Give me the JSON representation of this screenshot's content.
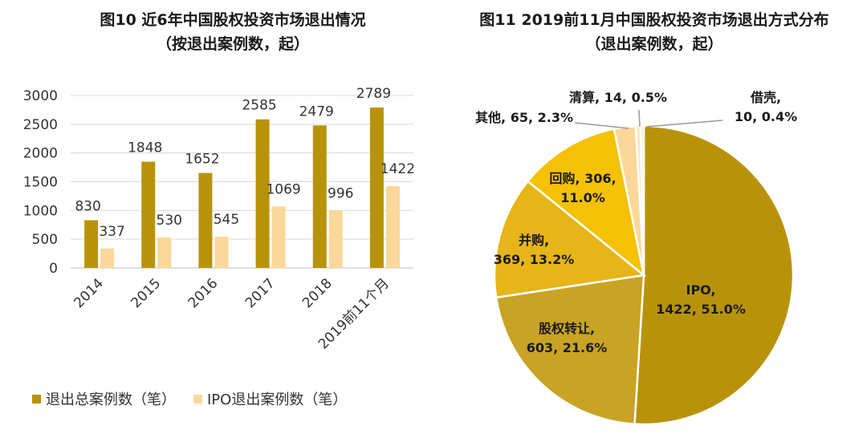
{
  "fig10": {
    "title_line1": "图10  近6年中国股权投资市场退出情况",
    "title_line2": "（按退出案例数，起）"
  },
  "fig11": {
    "title_line1": "图11   2019前11月中国股权投资市场退出方式分布",
    "title_line2": "（退出案例数，起）"
  },
  "colors": {
    "total": "#B8930A",
    "ipo": "#FCD79A"
  },
  "chart_data": [
    {
      "type": "bar",
      "categories": [
        "2014",
        "2015",
        "2016",
        "2017",
        "2018",
        "2019前11个月"
      ],
      "series": [
        {
          "name": "退出总案例数（笔）",
          "values": [
            830,
            1848,
            1652,
            2585,
            2479,
            2789
          ]
        },
        {
          "name": "IPO退出案例数（笔）",
          "values": [
            337,
            530,
            545,
            1069,
            996,
            1422
          ]
        }
      ],
      "ylim": [
        0,
        3000
      ],
      "yticks": [
        0,
        500,
        1000,
        1500,
        2000,
        2500,
        3000
      ],
      "grid": true,
      "legend": "bottom"
    },
    {
      "type": "pie",
      "slices": [
        {
          "name": "IPO",
          "value": 1422,
          "pct": "51.0%",
          "color": "#B8930A"
        },
        {
          "name": "股权转让",
          "value": 603,
          "pct": "21.6%",
          "color": "#C9A323"
        },
        {
          "name": "并购",
          "value": 369,
          "pct": "13.2%",
          "color": "#E6B517"
        },
        {
          "name": "回购",
          "value": 306,
          "pct": "11.0%",
          "color": "#F5C104"
        },
        {
          "name": "其他",
          "value": 65,
          "pct": "2.3%",
          "color": "#FCD79A"
        },
        {
          "name": "清算",
          "value": 14,
          "pct": "0.5%",
          "color": "#FDE6B8"
        },
        {
          "name": "借壳",
          "value": 10,
          "pct": "0.4%",
          "color": "#FFF1D2"
        }
      ]
    }
  ],
  "pie_labels": {
    "ipo": [
      "IPO,",
      "1422, 51.0%"
    ],
    "equity_transfer": [
      "股权转让,",
      "603, 21.6%"
    ],
    "merger": [
      "并购,",
      "369, 13.2%"
    ],
    "buyback": [
      "回购, 306,",
      "11.0%"
    ],
    "other": [
      "其他, 65, 2.3%"
    ],
    "liquidation": [
      "清算, 14, 0.5%"
    ],
    "backdoor": [
      "借壳,",
      "10, 0.4%"
    ]
  }
}
